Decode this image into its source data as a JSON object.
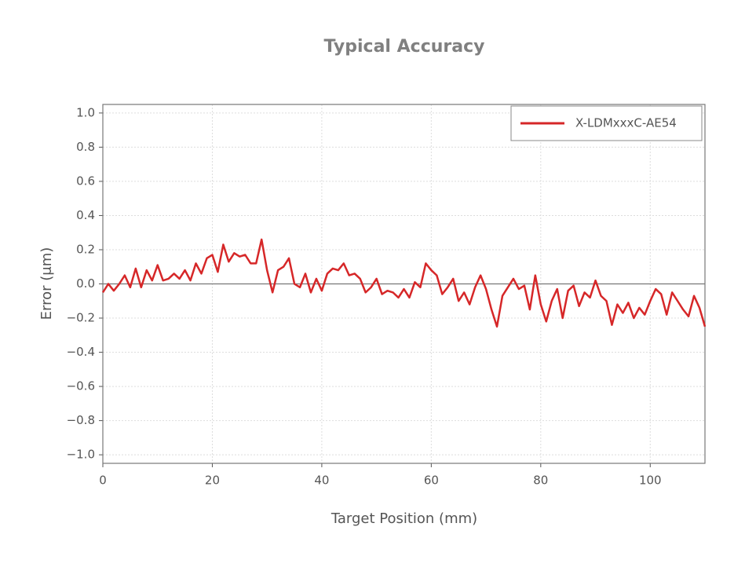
{
  "chart_data": {
    "type": "line",
    "title": "Typical Accuracy",
    "x_label": "Target Position (mm)",
    "y_label": "Error (μm)",
    "x": [
      0,
      1,
      2,
      3,
      4,
      5,
      6,
      7,
      8,
      9,
      10,
      11,
      12,
      13,
      14,
      15,
      16,
      17,
      18,
      19,
      20,
      21,
      22,
      23,
      24,
      25,
      26,
      27,
      28,
      29,
      30,
      31,
      32,
      33,
      34,
      35,
      36,
      37,
      38,
      39,
      40,
      41,
      42,
      43,
      44,
      45,
      46,
      47,
      48,
      49,
      50,
      51,
      52,
      53,
      54,
      55,
      56,
      57,
      58,
      59,
      60,
      61,
      62,
      63,
      64,
      65,
      66,
      67,
      68,
      69,
      70,
      71,
      72,
      73,
      74,
      75,
      76,
      77,
      78,
      79,
      80,
      81,
      82,
      83,
      84,
      85,
      86,
      87,
      88,
      89,
      90,
      91,
      92,
      93,
      94,
      95,
      96,
      97,
      98,
      99,
      100,
      101,
      102,
      103,
      104,
      105,
      106,
      107,
      108,
      109,
      110
    ],
    "series": [
      {
        "name": "X-LDMxxxC-AE54",
        "color": "#d62728",
        "values": [
          -0.05,
          0.0,
          -0.04,
          0.0,
          0.05,
          -0.02,
          0.09,
          -0.02,
          0.08,
          0.02,
          0.11,
          0.02,
          0.03,
          0.06,
          0.03,
          0.08,
          0.02,
          0.12,
          0.06,
          0.15,
          0.17,
          0.07,
          0.23,
          0.13,
          0.18,
          0.16,
          0.17,
          0.12,
          0.12,
          0.26,
          0.08,
          -0.05,
          0.08,
          0.1,
          0.15,
          0.0,
          -0.02,
          0.06,
          -0.05,
          0.03,
          -0.04,
          0.06,
          0.09,
          0.08,
          0.12,
          0.05,
          0.06,
          0.03,
          -0.05,
          -0.02,
          0.03,
          -0.06,
          -0.04,
          -0.05,
          -0.08,
          -0.03,
          -0.08,
          0.01,
          -0.02,
          0.12,
          0.08,
          0.05,
          -0.06,
          -0.02,
          0.03,
          -0.1,
          -0.05,
          -0.12,
          -0.02,
          0.05,
          -0.03,
          -0.15,
          -0.25,
          -0.07,
          -0.02,
          0.03,
          -0.03,
          -0.01,
          -0.15,
          0.05,
          -0.12,
          -0.22,
          -0.1,
          -0.03,
          -0.2,
          -0.04,
          -0.01,
          -0.13,
          -0.05,
          -0.08,
          0.02,
          -0.07,
          -0.1,
          -0.24,
          -0.12,
          -0.17,
          -0.11,
          -0.2,
          -0.14,
          -0.18,
          -0.1,
          -0.03,
          -0.06,
          -0.18,
          -0.05,
          -0.1,
          -0.15,
          -0.19,
          -0.07,
          -0.14,
          -0.25
        ]
      }
    ],
    "xlim": [
      0,
      110
    ],
    "xticks": [
      0,
      20,
      40,
      60,
      80,
      100
    ],
    "ylim": [
      -1.05,
      1.05
    ],
    "yticks": [
      {
        "value": -1,
        "label": "−1.0"
      },
      {
        "value": -0.8,
        "label": "−0.8"
      },
      {
        "value": -0.6,
        "label": "−0.6"
      },
      {
        "value": -0.4,
        "label": "−0.4"
      },
      {
        "value": -0.2,
        "label": "−0.2"
      },
      {
        "value": 0,
        "label": "0.0"
      },
      {
        "value": 0.2,
        "label": "0.2"
      },
      {
        "value": 0.4,
        "label": "0.4"
      },
      {
        "value": 0.6,
        "label": "0.6"
      },
      {
        "value": 0.8,
        "label": "0.8"
      },
      {
        "value": 1,
        "label": "1.0"
      }
    ],
    "reference_line": 0,
    "grid": true,
    "legend_position": "upper-right"
  }
}
